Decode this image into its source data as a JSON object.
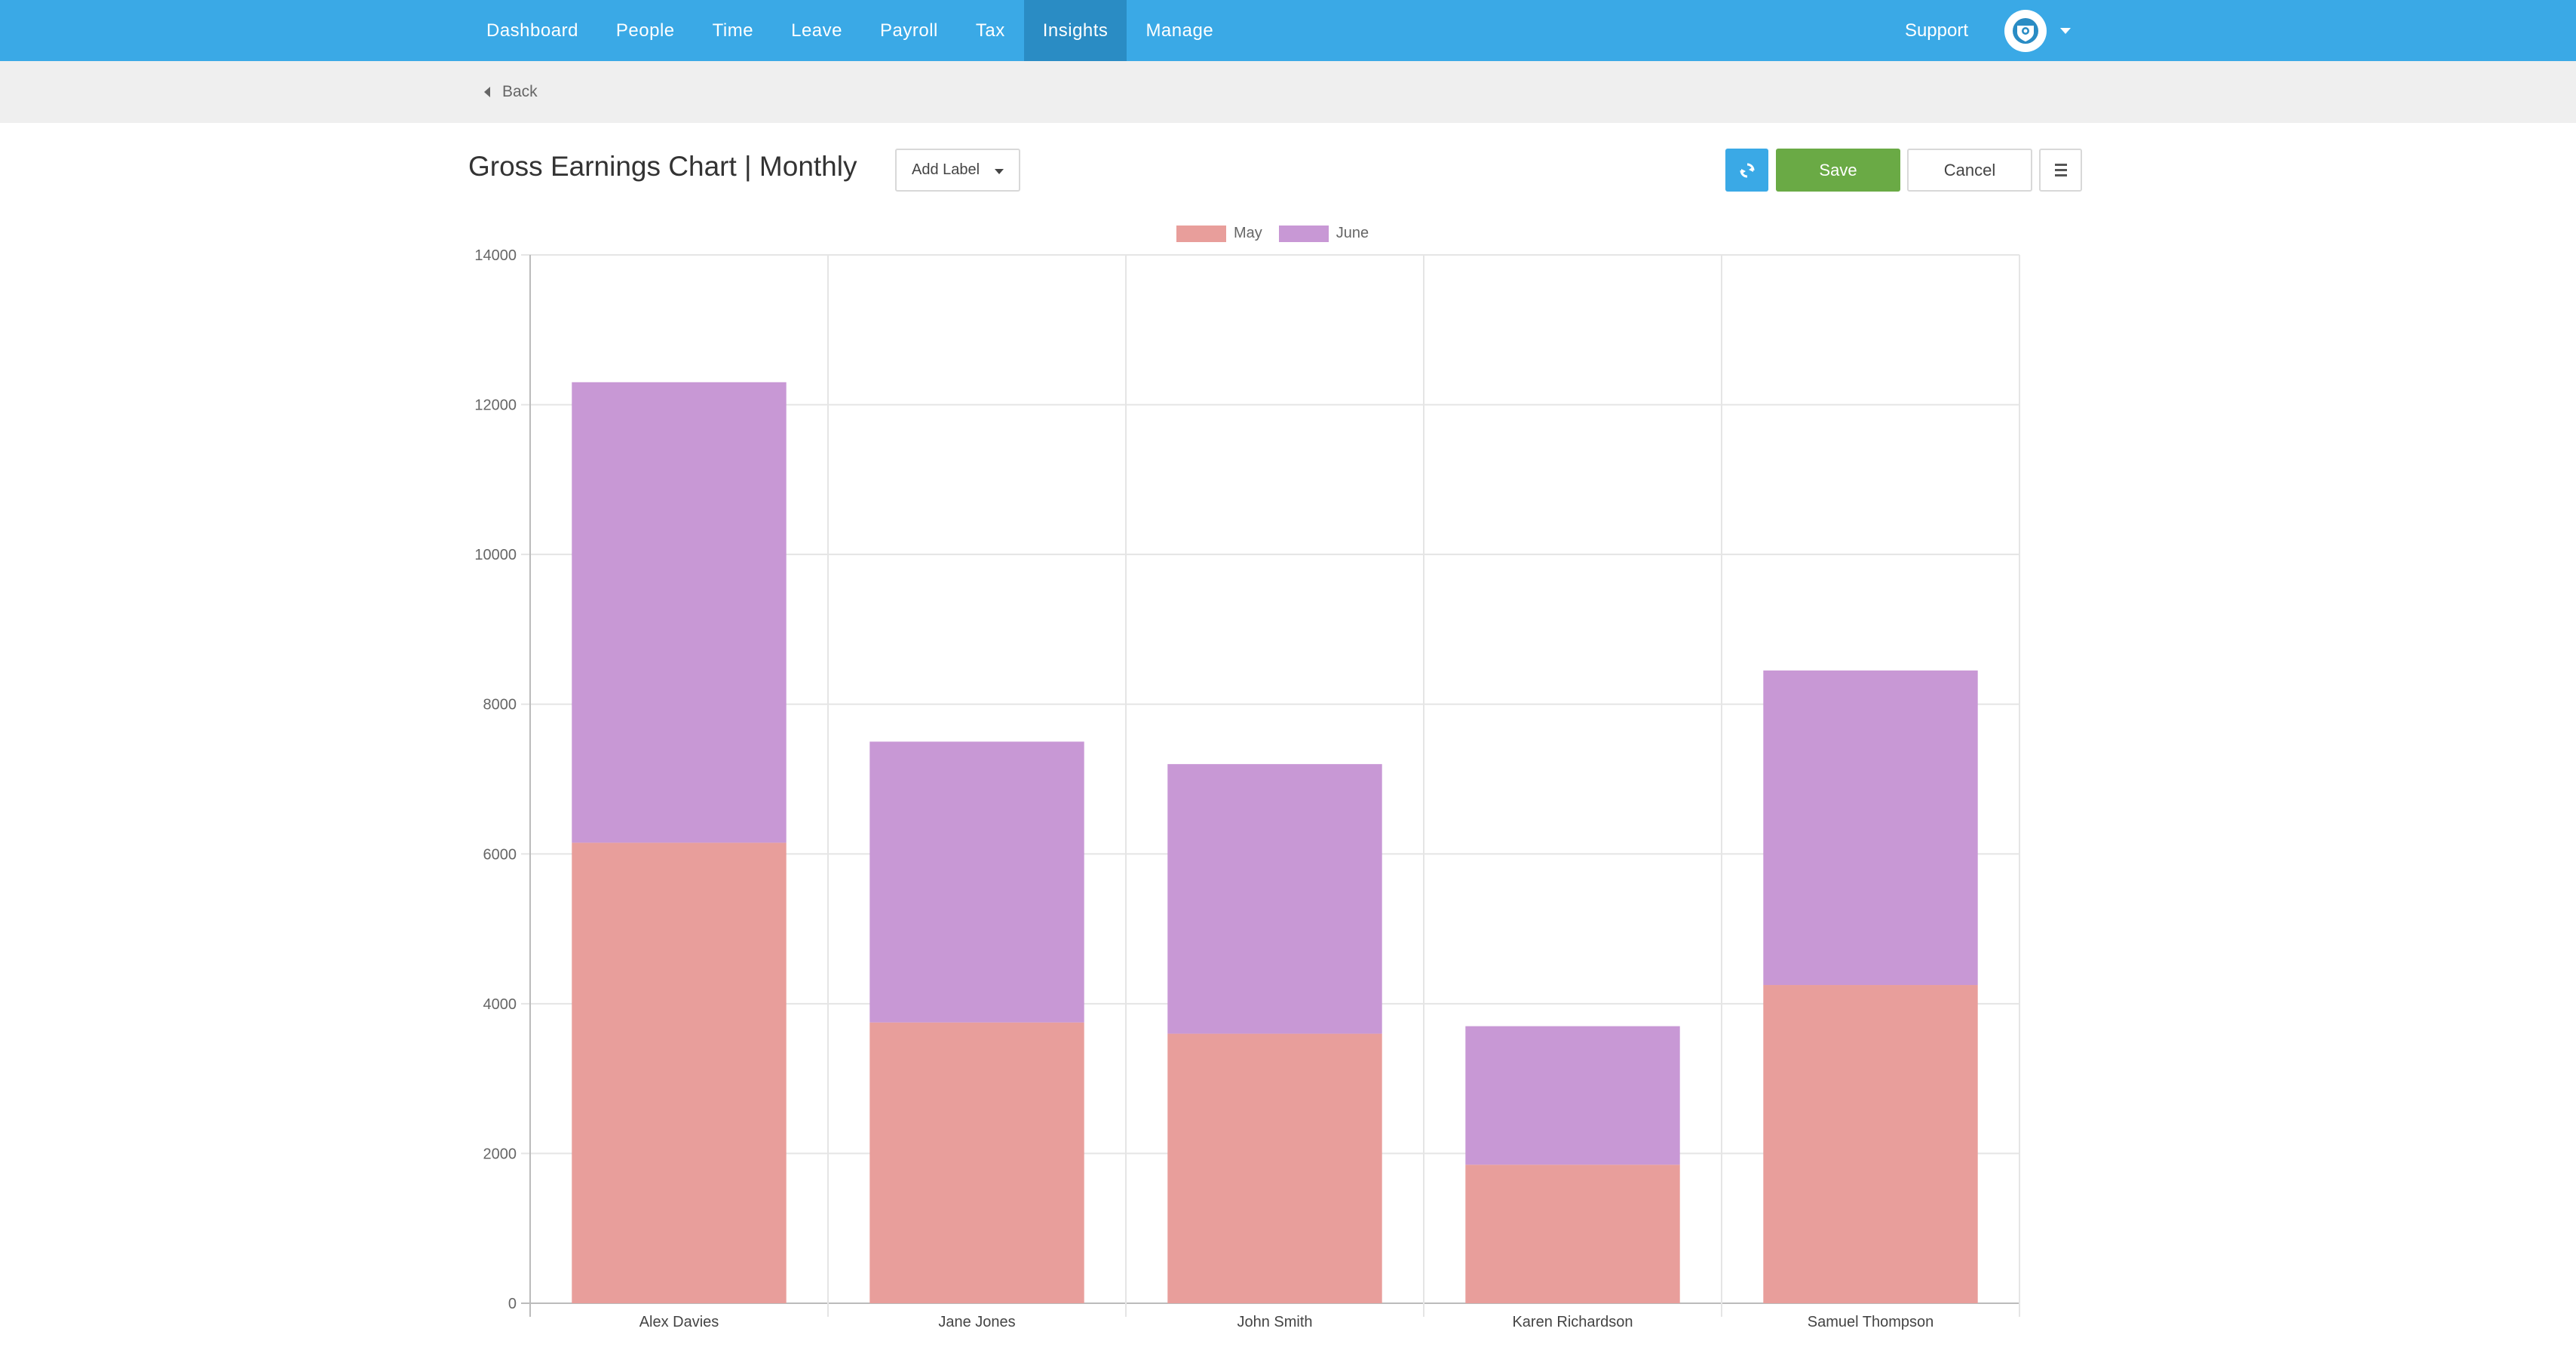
{
  "nav": {
    "items": [
      "Dashboard",
      "People",
      "Time",
      "Leave",
      "Payroll",
      "Tax",
      "Insights",
      "Manage"
    ],
    "active": "Insights",
    "support": "Support"
  },
  "subbar": {
    "back": "Back"
  },
  "header": {
    "title": "Gross Earnings Chart | Monthly",
    "add_label": "Add Label",
    "save": "Save",
    "cancel": "Cancel"
  },
  "colors": {
    "nav": "#3aa9e6",
    "nav_active": "#2a8cc4",
    "save": "#6aaa45",
    "may": "#e89e9b",
    "june": "#c898d5"
  },
  "icons": {
    "refresh": "refresh-icon",
    "menu": "hamburger-menu-icon",
    "avatar": "user-avatar-icon",
    "back": "caret-left-icon"
  },
  "chart_data": {
    "type": "bar",
    "stacked": true,
    "categories": [
      "Alex Davies",
      "Jane Jones",
      "John Smith",
      "Karen Richardson",
      "Samuel Thompson"
    ],
    "series": [
      {
        "name": "May",
        "color": "#e89e9b",
        "values": [
          6150,
          3750,
          3600,
          1850,
          4250
        ]
      },
      {
        "name": "June",
        "color": "#c898d5",
        "values": [
          6150,
          3750,
          3600,
          1850,
          4200
        ]
      }
    ],
    "ylim": [
      0,
      14000
    ],
    "yticks": [
      0,
      2000,
      4000,
      6000,
      8000,
      10000,
      12000,
      14000
    ],
    "legend": "top-center",
    "grid": true
  }
}
